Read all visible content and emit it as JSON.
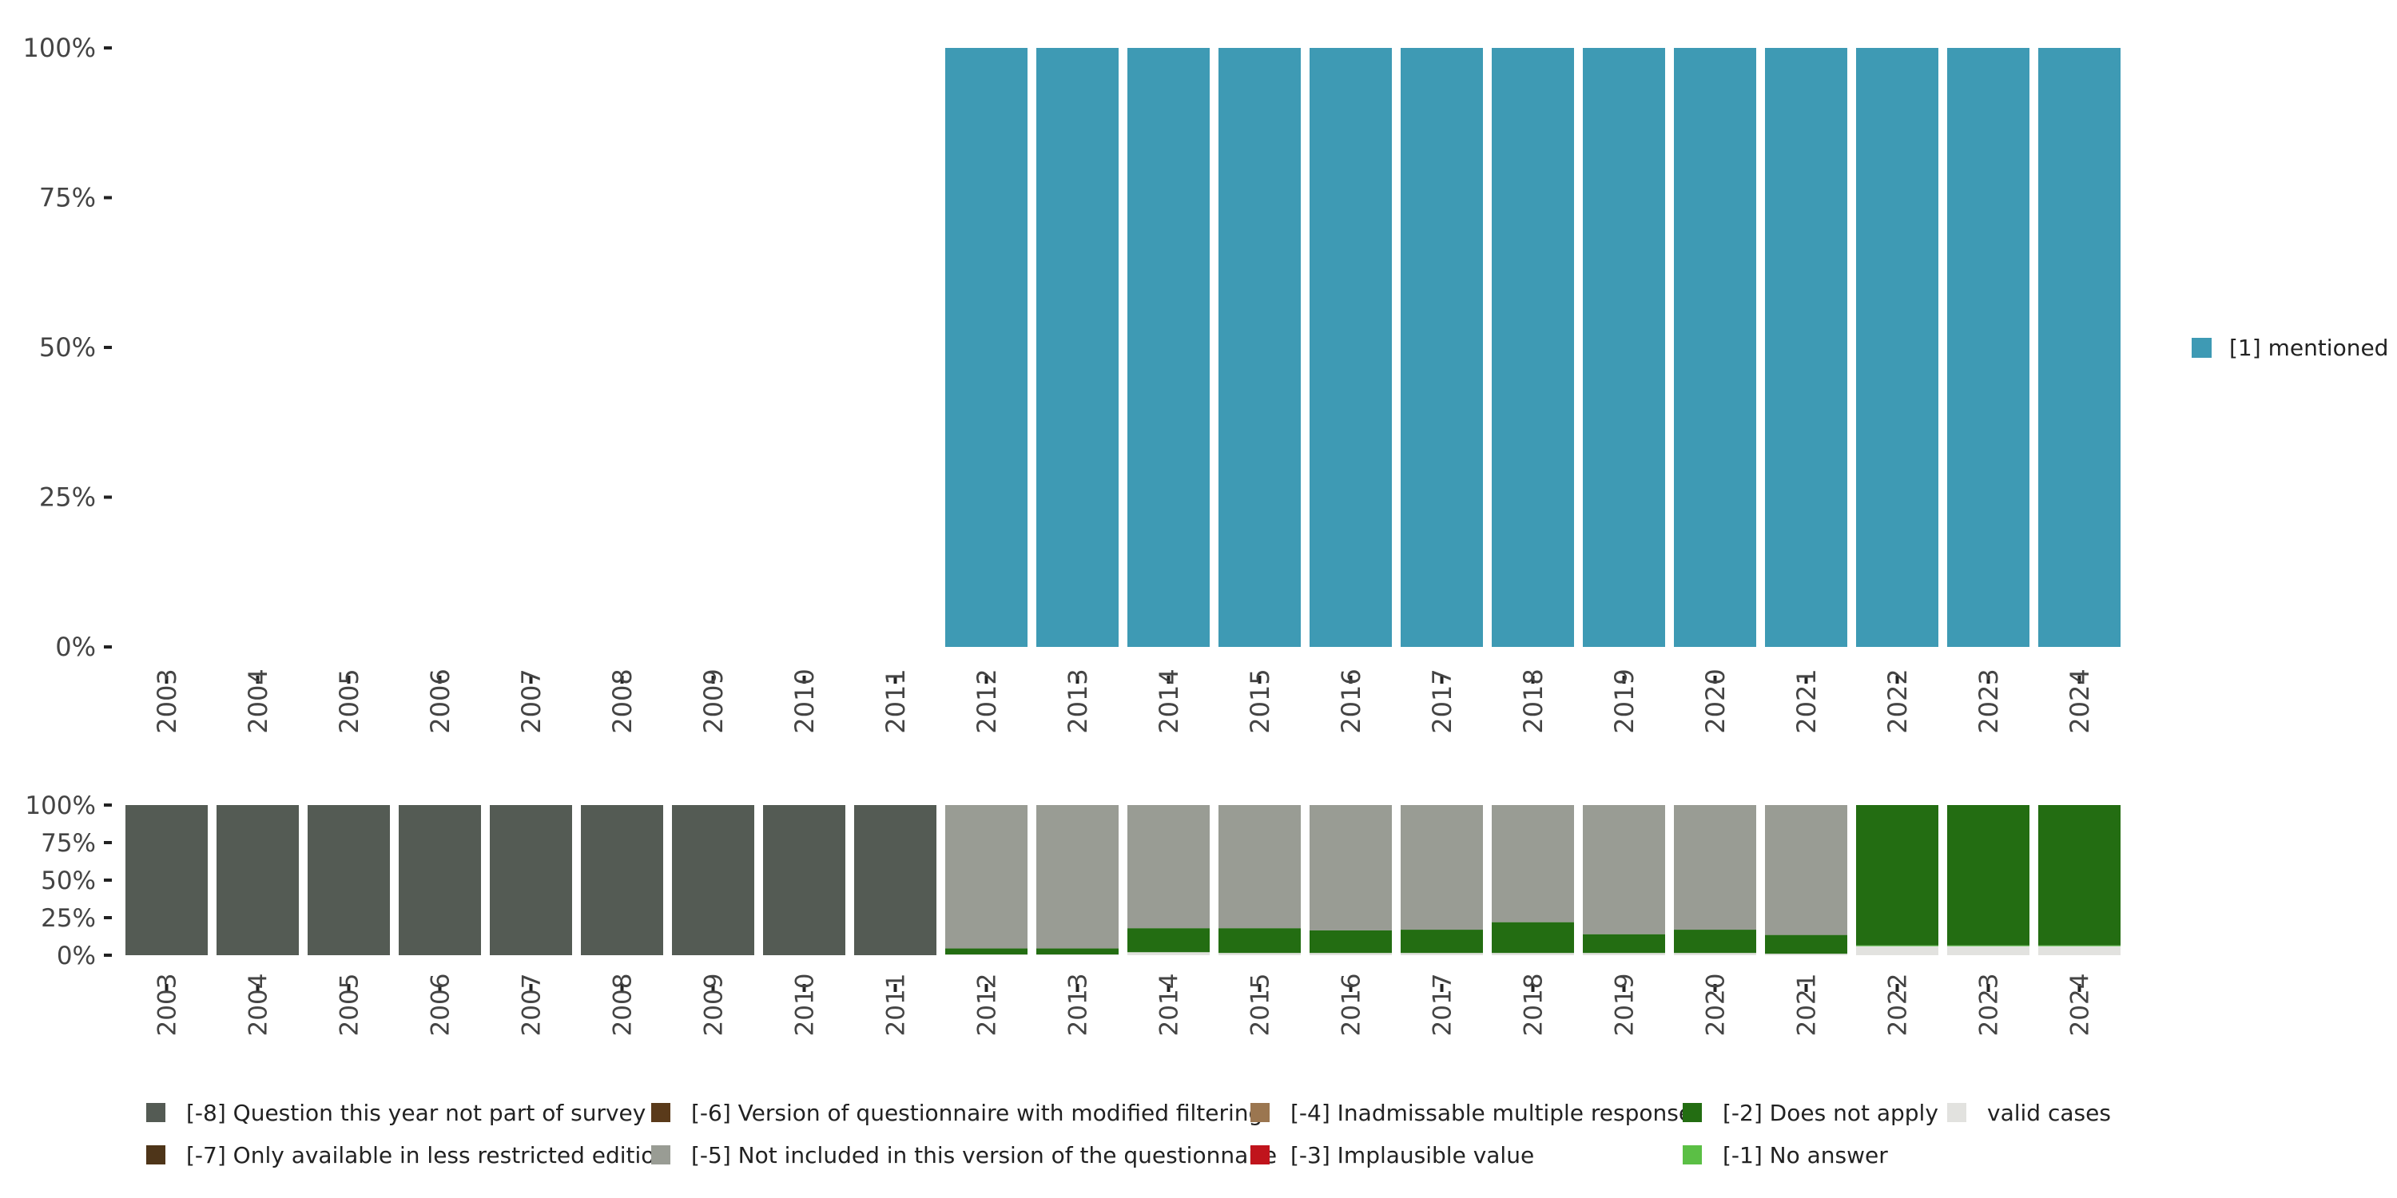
{
  "chart_data": [
    {
      "type": "bar",
      "stacked": true,
      "title": "",
      "xlabel": "",
      "ylabel": "",
      "ylim": [
        0,
        100
      ],
      "yticks": [
        "0%",
        "25%",
        "50%",
        "75%",
        "100%"
      ],
      "categories": [
        "2003",
        "2004",
        "2005",
        "2006",
        "2007",
        "2008",
        "2009",
        "2010",
        "2011",
        "2012",
        "2013",
        "2014",
        "2015",
        "2016",
        "2017",
        "2018",
        "2019",
        "2020",
        "2021",
        "2022",
        "2023",
        "2024"
      ],
      "series": [
        {
          "name": "[1] mentioned",
          "color": "#3e9ab4",
          "values": [
            null,
            null,
            null,
            null,
            null,
            null,
            null,
            null,
            null,
            100,
            100,
            100,
            100,
            100,
            100,
            100,
            100,
            100,
            100,
            100,
            100,
            100
          ]
        }
      ],
      "legend": {
        "position": "right",
        "entries": [
          "[1] mentioned"
        ]
      }
    },
    {
      "type": "bar",
      "stacked": true,
      "title": "",
      "xlabel": "",
      "ylabel": "",
      "ylim": [
        0,
        100
      ],
      "yticks": [
        "0%",
        "25%",
        "50%",
        "75%",
        "100%"
      ],
      "categories": [
        "2003",
        "2004",
        "2005",
        "2006",
        "2007",
        "2008",
        "2009",
        "2010",
        "2011",
        "2012",
        "2013",
        "2014",
        "2015",
        "2016",
        "2017",
        "2018",
        "2019",
        "2020",
        "2021",
        "2022",
        "2023",
        "2024"
      ],
      "series": [
        {
          "name": "valid cases",
          "color": "#e2e2df",
          "values": [
            0,
            0,
            0,
            0,
            0,
            0,
            0,
            0,
            0,
            0.5,
            0.5,
            2,
            1.5,
            1.5,
            1.5,
            1.5,
            1.5,
            1.5,
            1,
            6,
            6,
            6
          ]
        },
        {
          "name": "[-1] No answer",
          "color": "#5bbf45",
          "values": [
            0,
            0,
            0,
            0,
            0,
            0,
            0,
            0,
            0,
            0,
            0,
            0,
            0,
            0,
            0,
            0,
            0,
            0,
            0,
            0.5,
            0.5,
            0.5
          ]
        },
        {
          "name": "[-2] Does not apply",
          "color": "#236d12",
          "values": [
            0,
            0,
            0,
            0,
            0,
            0,
            0,
            0,
            0,
            4,
            4,
            16,
            16.5,
            15,
            15.5,
            20.5,
            12.5,
            15.5,
            12.5,
            93.5,
            93.5,
            93.5
          ]
        },
        {
          "name": "[-5] Not included in this version of the questionnaire",
          "color": "#999c94",
          "values": [
            0,
            0,
            0,
            0,
            0,
            0,
            0,
            0,
            0,
            95.5,
            95.5,
            82,
            82,
            83.5,
            83,
            78,
            86,
            83,
            86.5,
            0,
            0,
            0
          ]
        },
        {
          "name": "[-8] Question this year not part of survey",
          "color": "#545b54",
          "values": [
            100,
            100,
            100,
            100,
            100,
            100,
            100,
            100,
            100,
            0,
            0,
            0,
            0,
            0,
            0,
            0,
            0,
            0,
            0,
            0,
            0,
            0
          ]
        }
      ],
      "legend": {
        "position": "bottom",
        "entries": [
          {
            "label": "[-8] Question this year not part of survey",
            "color": "#545b54"
          },
          {
            "label": "[-7] Only available in less restricted edition",
            "color": "#4e3519"
          },
          {
            "label": "[-6] Version of questionnaire with modified filtering",
            "color": "#5a3a1a"
          },
          {
            "label": "[-5] Not included in this version of the questionnaire",
            "color": "#999c94"
          },
          {
            "label": "[-4] Inadmissable multiple response",
            "color": "#9b7650"
          },
          {
            "label": "[-3] Implausible value",
            "color": "#c0141c"
          },
          {
            "label": "[-2] Does not apply",
            "color": "#236d12"
          },
          {
            "label": "[-1] No answer",
            "color": "#5bbf45"
          },
          {
            "label": "valid cases",
            "color": "#e2e2df"
          }
        ]
      }
    }
  ]
}
